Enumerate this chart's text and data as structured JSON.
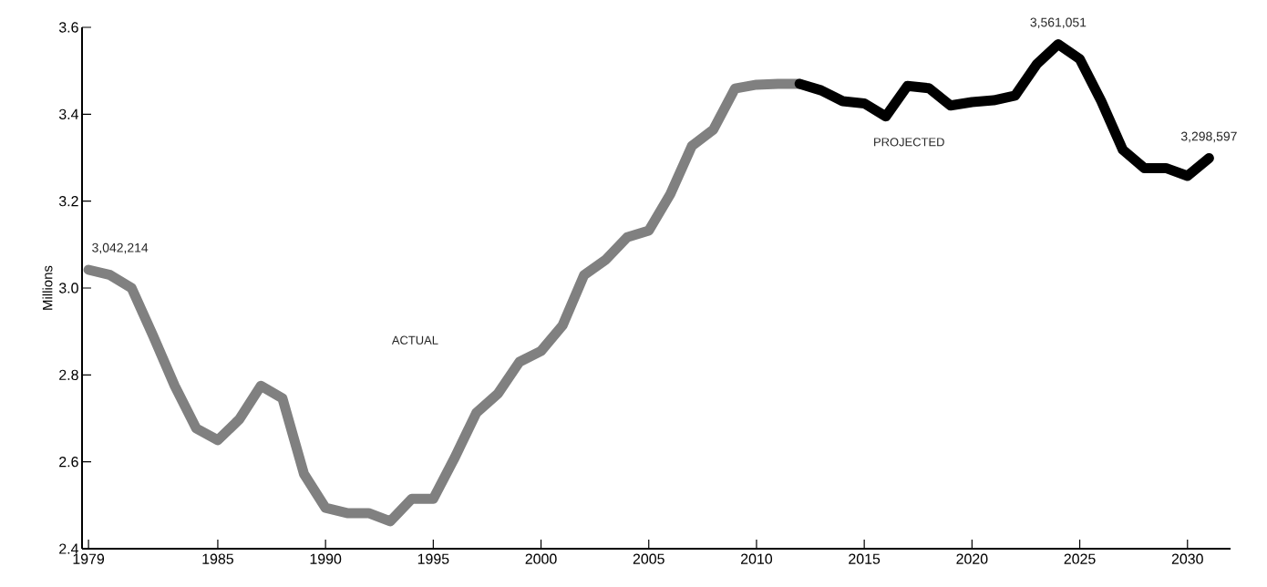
{
  "chart_data": {
    "type": "line",
    "ylabel": "Millions",
    "series": [
      {
        "color": "#808080",
        "x": [
          1979,
          1980,
          1981,
          1982,
          1983,
          1984,
          1985,
          1986,
          1987,
          1988,
          1989,
          1990,
          1991,
          1992,
          1993,
          1994,
          1995,
          1996,
          1997,
          1998,
          1999,
          2000,
          2001,
          2002,
          2003,
          2004,
          2005,
          2006,
          2007,
          2008,
          2009,
          2010,
          2011,
          2012
        ],
        "values": [
          3.042,
          3.03,
          3.0,
          2.89,
          2.775,
          2.677,
          2.65,
          2.698,
          2.775,
          2.746,
          2.572,
          2.494,
          2.482,
          2.482,
          2.463,
          2.515,
          2.515,
          2.61,
          2.713,
          2.757,
          2.83,
          2.855,
          2.914,
          3.03,
          3.065,
          3.117,
          3.132,
          3.216,
          3.327,
          3.365,
          3.459,
          3.468,
          3.47,
          3.47
        ]
      },
      {
        "color": "#000000",
        "x": [
          2012,
          2013,
          2014,
          2015,
          2016,
          2017,
          2018,
          2019,
          2020,
          2021,
          2022,
          2023,
          2024,
          2025,
          2026,
          2027,
          2028,
          2029,
          2030,
          2031
        ],
        "values": [
          3.47,
          3.455,
          3.43,
          3.425,
          3.395,
          3.465,
          3.46,
          3.42,
          3.428,
          3.432,
          3.443,
          3.515,
          3.561,
          3.527,
          3.43,
          3.318,
          3.276,
          3.276,
          3.258,
          3.299
        ]
      }
    ],
    "annotations": [
      "ACTUAL",
      "PROJECTED",
      {
        "text": "3,042,214",
        "x": 1979,
        "y": 3.042214
      },
      {
        "text": "3,561,051",
        "x": 2024,
        "y": 3.561051
      },
      {
        "text": "3,298,597",
        "x": 2031,
        "y": 3.298597
      }
    ],
    "xlim": [
      1978.7,
      2032
    ],
    "ylim": [
      2.4,
      3.6
    ],
    "xticks": [
      1979,
      1985,
      1990,
      1995,
      2000,
      2005,
      2010,
      2015,
      2020,
      2025,
      2030
    ],
    "yticks": [
      {
        "value": 2.4,
        "label": "2.4"
      },
      {
        "value": 2.6,
        "label": "2.6"
      },
      {
        "value": 2.8,
        "label": "2.8"
      },
      {
        "value": 3.0,
        "label": "3.0"
      },
      {
        "value": 3.2,
        "label": "3.2"
      },
      {
        "value": 3.4,
        "label": "3.4"
      },
      {
        "value": 3.6,
        "label": "3.6"
      }
    ],
    "grid": false,
    "legend": false,
    "marker": "none",
    "line_style": "solid"
  }
}
